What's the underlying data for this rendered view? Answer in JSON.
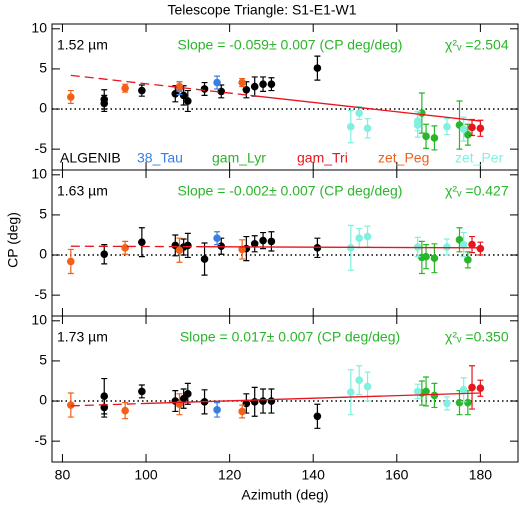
{
  "chart_data": [
    {
      "type": "scatter",
      "title": "Telescope Triangle: S1-E1-W1",
      "label": "1.52 µm",
      "slope_text": "Slope = -0.059± 0.007 (CP deg/deg)",
      "chi2_text": "χ²ᵥ =2.504",
      "xlim": [
        77.5,
        189
      ],
      "xticks": [
        80,
        100,
        120,
        140,
        160,
        180
      ],
      "ylim": [
        -7.6,
        10.6
      ],
      "yticks": [
        -5,
        0,
        5,
        10
      ],
      "fit_color": "#e8141e",
      "fit_dashed": {
        "x": [
          82,
          125
        ],
        "values": [
          4.2,
          1.7
        ]
      },
      "fit_solid": {
        "x": [
          125,
          180
        ],
        "values": [
          1.7,
          -1.5
        ]
      },
      "series": [
        {
          "name": "ALGENIB",
          "color": "#000000",
          "x": [
            90,
            90,
            99,
            107,
            109,
            110,
            114,
            118,
            124,
            126,
            128,
            130,
            141
          ],
          "values": [
            1.2,
            0.7,
            2.3,
            1.9,
            1.7,
            1.0,
            2.5,
            2.2,
            2.4,
            2.8,
            3.1,
            3.1,
            5.1
          ],
          "errors": [
            1.2,
            1.0,
            0.7,
            1.0,
            1.2,
            1.3,
            0.8,
            0.8,
            1.0,
            1.2,
            0.9,
            0.8,
            1.5
          ]
        },
        {
          "name": "38_Tau",
          "color": "#3a7fe0",
          "x": [
            108,
            117
          ],
          "values": [
            2.6,
            3.3
          ],
          "errors": [
            0.8,
            0.8
          ]
        },
        {
          "name": "gam_Lyr",
          "color": "#2ab52a",
          "x": [
            166,
            167,
            169,
            175,
            177
          ],
          "values": [
            -0.5,
            -3.4,
            -3.6,
            -2.0,
            -3.2
          ],
          "errors": [
            2.5,
            1.5,
            1.5,
            3.0,
            1.3
          ]
        },
        {
          "name": "gam_Tri",
          "color": "#e8141e",
          "x": [
            178,
            180
          ],
          "values": [
            -2.3,
            -2.4
          ],
          "errors": [
            1.0,
            1.0
          ]
        },
        {
          "name": "zet_Peg",
          "color": "#f06018",
          "x": [
            82,
            95,
            108,
            123
          ],
          "values": [
            1.5,
            2.6,
            2.8,
            3.3
          ],
          "errors": [
            0.8,
            0.5,
            0.6,
            0.5
          ]
        },
        {
          "name": "zet_Per",
          "color": "#80f0e0",
          "x": [
            149,
            151,
            153,
            165,
            165,
            172,
            176
          ],
          "values": [
            -2.2,
            -0.5,
            -2.4,
            -2.0,
            -1.5,
            -2.2,
            -2.5
          ],
          "errors": [
            2.0,
            0.8,
            1.2,
            1.5,
            1.2,
            1.0,
            1.5
          ]
        }
      ]
    },
    {
      "type": "scatter",
      "ylabel": "CP (deg)",
      "label": "1.63 µm",
      "slope_text": "Slope = -0.002± 0.007 (CP deg/deg)",
      "chi2_text": "χ²ᵥ =0.427",
      "xlim": [
        77.5,
        189
      ],
      "xticks": [
        80,
        100,
        120,
        140,
        160,
        180
      ],
      "ylim": [
        -7.6,
        10.6
      ],
      "yticks": [
        -5,
        0,
        5,
        10
      ],
      "fit_color": "#e8141e",
      "fit_dashed": {
        "x": [
          82,
          112
        ],
        "values": [
          1.1,
          1.04
        ]
      },
      "fit_solid": {
        "x": [
          112,
          180
        ],
        "values": [
          1.04,
          0.9
        ]
      },
      "series": [
        {
          "color": "#000000",
          "x": [
            90,
            99,
            107,
            109,
            110,
            114,
            118,
            124,
            126,
            128,
            130,
            141
          ],
          "values": [
            0.1,
            1.6,
            1.2,
            1.0,
            1.2,
            -0.5,
            1.1,
            0.8,
            1.4,
            1.8,
            1.7,
            0.9
          ],
          "errors": [
            1.2,
            1.8,
            1.3,
            1.0,
            1.5,
            2.0,
            1.0,
            1.5,
            1.0,
            1.0,
            1.2,
            1.2
          ]
        },
        {
          "color": "#3a7fe0",
          "x": [
            117
          ],
          "values": [
            2.1
          ],
          "errors": [
            0.8
          ]
        },
        {
          "color": "#2ab52a",
          "x": [
            166,
            167,
            169,
            175,
            177
          ],
          "values": [
            -0.3,
            -0.2,
            -0.4,
            1.9,
            -0.6
          ],
          "errors": [
            2.0,
            1.5,
            1.8,
            1.5,
            1.0
          ]
        },
        {
          "color": "#e8141e",
          "x": [
            178,
            180
          ],
          "values": [
            1.3,
            0.8
          ],
          "errors": [
            1.0,
            0.8
          ]
        },
        {
          "color": "#f06018",
          "x": [
            82,
            95,
            108,
            123
          ],
          "values": [
            -0.8,
            0.9,
            0.6,
            0.7
          ],
          "errors": [
            1.5,
            0.8,
            1.5,
            1.2
          ]
        },
        {
          "color": "#80f0e0",
          "x": [
            149,
            151,
            153,
            165,
            172,
            176
          ],
          "values": [
            0.9,
            2.1,
            2.3,
            1.0,
            1.0,
            1.3
          ],
          "errors": [
            2.8,
            1.2,
            1.3,
            1.2,
            1.0,
            1.5
          ]
        }
      ]
    },
    {
      "type": "scatter",
      "xlabel": "Azimuth (deg)",
      "label": "1.73 µm",
      "slope_text": "Slope =  0.017± 0.007 (CP deg/deg)",
      "chi2_text": "χ²ᵥ =0.350",
      "xlim": [
        77.5,
        189
      ],
      "xticks": [
        80,
        100,
        120,
        140,
        160,
        180
      ],
      "ylim": [
        -7.6,
        10.6
      ],
      "yticks": [
        -5,
        0,
        5,
        10
      ],
      "fit_color": "#e8141e",
      "fit_dashed": {
        "x": [
          82,
          100
        ],
        "values": [
          -0.6,
          -0.3
        ]
      },
      "fit_solid": {
        "x": [
          100,
          180
        ],
        "values": [
          -0.3,
          1.0
        ]
      },
      "series": [
        {
          "color": "#000000",
          "x": [
            90,
            90,
            99,
            107,
            109,
            110,
            114,
            124,
            126,
            128,
            130,
            141
          ],
          "values": [
            0.6,
            -0.8,
            1.2,
            0.0,
            0.3,
            0.9,
            -0.1,
            -0.3,
            -0.1,
            0.0,
            0.0,
            -1.9
          ],
          "errors": [
            2.2,
            1.2,
            0.8,
            1.3,
            1.2,
            1.3,
            1.5,
            1.2,
            1.8,
            1.5,
            1.5,
            1.5
          ]
        },
        {
          "color": "#3a7fe0",
          "x": [
            117
          ],
          "values": [
            -1.1
          ],
          "errors": [
            0.9
          ]
        },
        {
          "color": "#2ab52a",
          "x": [
            166,
            167,
            169,
            175,
            177
          ],
          "values": [
            1.0,
            1.2,
            0.7,
            -0.2,
            -0.2
          ],
          "errors": [
            1.5,
            1.8,
            1.5,
            1.5,
            1.5
          ]
        },
        {
          "color": "#e8141e",
          "x": [
            178,
            180
          ],
          "values": [
            1.7,
            1.6
          ],
          "errors": [
            2.7,
            1.0
          ]
        },
        {
          "color": "#f06018",
          "x": [
            82,
            95,
            108,
            123
          ],
          "values": [
            -0.5,
            -1.2,
            -0.4,
            -1.3
          ],
          "errors": [
            1.5,
            1.0,
            1.3,
            0.8
          ]
        },
        {
          "color": "#80f0e0",
          "x": [
            149,
            151,
            153,
            165,
            172,
            176
          ],
          "values": [
            1.1,
            2.6,
            1.8,
            1.2,
            -0.3,
            1.4
          ],
          "errors": [
            2.8,
            1.8,
            1.8,
            0.9,
            0.8,
            1.5
          ]
        }
      ]
    }
  ]
}
